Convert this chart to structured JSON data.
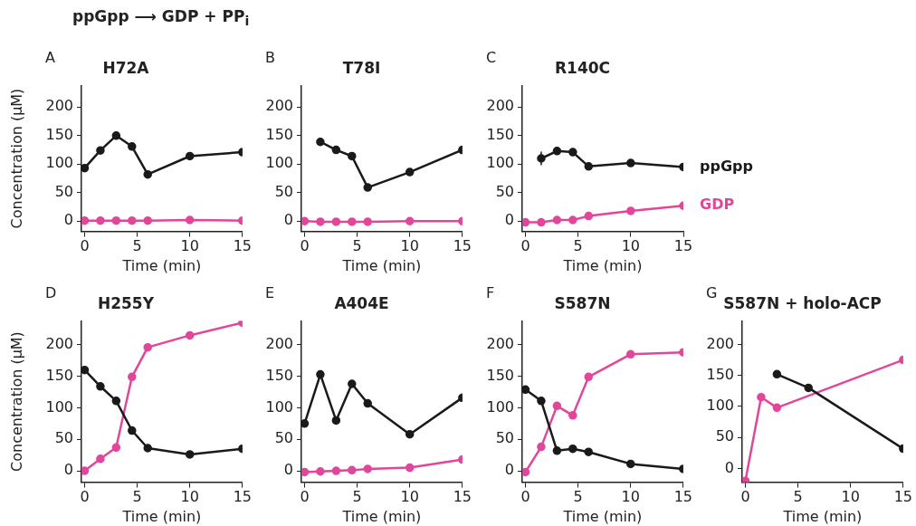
{
  "chart_data": [
    {
      "type": "line",
      "title": "H72A",
      "annotations": [
        "A",
        "ppGpp ⟶ GDP + PP$_{i}$"
      ],
      "xlabel": "Time (min)",
      "ylabel": "Concentration (μM)",
      "xlim": [
        -0.3,
        15
      ],
      "xticks": [
        0,
        5,
        10,
        15
      ],
      "ylim": [
        -18,
        238
      ],
      "yticks": [
        0,
        50,
        100,
        150,
        200
      ],
      "grid": false,
      "marker": "circle",
      "series": [
        {
          "color": "#1a1a1a",
          "x": [
            0,
            1.5,
            3,
            4.5,
            6,
            10,
            15
          ],
          "values": [
            93,
            124,
            150,
            131,
            82,
            114,
            121
          ]
        },
        {
          "color": "#e0479a",
          "x": [
            0,
            1.5,
            3,
            4.5,
            6,
            10,
            15
          ],
          "values": [
            1,
            1,
            1,
            1,
            1,
            2,
            1
          ]
        }
      ]
    },
    {
      "type": "line",
      "title": "T78I",
      "annotations": [
        "B"
      ],
      "xlabel": "Time (min)",
      "xlim": [
        -0.3,
        15
      ],
      "xticks": [
        0,
        5,
        10,
        15
      ],
      "ylim": [
        -18,
        238
      ],
      "yticks": [
        0,
        50,
        100,
        150,
        200
      ],
      "grid": false,
      "marker": "circle",
      "series": [
        {
          "color": "#1a1a1a",
          "x": [
            1.5,
            3,
            4.5,
            6,
            10,
            15
          ],
          "values": [
            139,
            125,
            114,
            59,
            86,
            125
          ]
        },
        {
          "color": "#e0479a",
          "x": [
            0,
            1.5,
            3,
            4.5,
            6,
            10,
            15
          ],
          "values": [
            0,
            -1,
            -1,
            -1,
            -1,
            0,
            0
          ]
        }
      ]
    },
    {
      "type": "line",
      "title": "R140C",
      "annotations": [
        "C"
      ],
      "xlabel": "Time (min)",
      "xlim": [
        -0.3,
        15
      ],
      "xticks": [
        0,
        5,
        10,
        15
      ],
      "ylim": [
        -18,
        238
      ],
      "yticks": [
        0,
        50,
        100,
        150,
        200
      ],
      "grid": false,
      "marker": "circle",
      "series": [
        {
          "name": "ppGpp",
          "color": "#1a1a1a",
          "x": [
            1.5,
            3,
            4.5,
            6,
            10,
            15
          ],
          "values": [
            110,
            123,
            121,
            96,
            102,
            95
          ],
          "errors": [
            12,
            null,
            null,
            null,
            null,
            null
          ]
        },
        {
          "name": "GDP",
          "color": "#e0479a",
          "x": [
            0,
            1.5,
            3,
            4.5,
            6,
            10,
            15
          ],
          "values": [
            -2,
            -2,
            2,
            2,
            9,
            18,
            27
          ]
        }
      ]
    },
    {
      "type": "line",
      "title": "H255Y",
      "annotations": [
        "D"
      ],
      "xlabel": "Time (min)",
      "ylabel": "Concentration (μM)",
      "xlim": [
        -0.3,
        15
      ],
      "xticks": [
        0,
        5,
        10,
        15
      ],
      "ylim": [
        -18,
        238
      ],
      "yticks": [
        0,
        50,
        100,
        150,
        200
      ],
      "grid": false,
      "marker": "circle",
      "series": [
        {
          "color": "#1a1a1a",
          "x": [
            0,
            1.5,
            3,
            4.5,
            6,
            10,
            15
          ],
          "values": [
            160,
            134,
            111,
            64,
            36,
            26,
            35
          ]
        },
        {
          "color": "#e0479a",
          "x": [
            0,
            1.5,
            3,
            4.5,
            6,
            10,
            15
          ],
          "values": [
            0,
            19,
            37,
            149,
            196,
            215,
            235
          ]
        }
      ]
    },
    {
      "type": "line",
      "title": "A404E",
      "annotations": [
        "E"
      ],
      "xlabel": "Time (min)",
      "xlim": [
        -0.3,
        15
      ],
      "xticks": [
        0,
        5,
        10,
        15
      ],
      "ylim": [
        -18,
        238
      ],
      "yticks": [
        0,
        50,
        100,
        150,
        200
      ],
      "grid": false,
      "marker": "circle",
      "series": [
        {
          "color": "#1a1a1a",
          "x": [
            0,
            1.5,
            3,
            4.5,
            6,
            10,
            15
          ],
          "values": [
            75,
            153,
            80,
            138,
            107,
            58,
            116
          ]
        },
        {
          "color": "#e0479a",
          "x": [
            0,
            1.5,
            3,
            4.5,
            6,
            10,
            15
          ],
          "values": [
            -2,
            -1,
            0,
            1,
            3,
            5,
            18
          ]
        }
      ]
    },
    {
      "type": "line",
      "title": "S587N",
      "annotations": [
        "F"
      ],
      "xlabel": "Time (min)",
      "xlim": [
        -0.3,
        15
      ],
      "xticks": [
        0,
        5,
        10,
        15
      ],
      "ylim": [
        -18,
        238
      ],
      "yticks": [
        0,
        50,
        100,
        150,
        200
      ],
      "grid": false,
      "marker": "circle",
      "series": [
        {
          "color": "#1a1a1a",
          "x": [
            0,
            1.5,
            3,
            4.5,
            6,
            10,
            15
          ],
          "values": [
            129,
            111,
            32,
            35,
            30,
            11,
            3
          ]
        },
        {
          "color": "#e0479a",
          "x": [
            0,
            1.5,
            3,
            4.5,
            6,
            10,
            15
          ],
          "values": [
            -2,
            38,
            103,
            88,
            149,
            185,
            188
          ]
        }
      ]
    },
    {
      "type": "line",
      "title": "S587N + holo-ACP",
      "annotations": [
        "G"
      ],
      "xlabel": "Time (min)",
      "xlim": [
        -0.3,
        15
      ],
      "xticks": [
        0,
        5,
        10,
        15
      ],
      "ylim": [
        -22,
        238
      ],
      "yticks": [
        0,
        50,
        100,
        150,
        200
      ],
      "grid": false,
      "marker": "circle",
      "series": [
        {
          "color": "#1a1a1a",
          "x": [
            3,
            6,
            15
          ],
          "values": [
            152,
            130,
            32
          ]
        },
        {
          "color": "#e0479a",
          "x": [
            0,
            1.5,
            3,
            15
          ],
          "values": [
            -20,
            115,
            98,
            175
          ]
        }
      ]
    }
  ]
}
